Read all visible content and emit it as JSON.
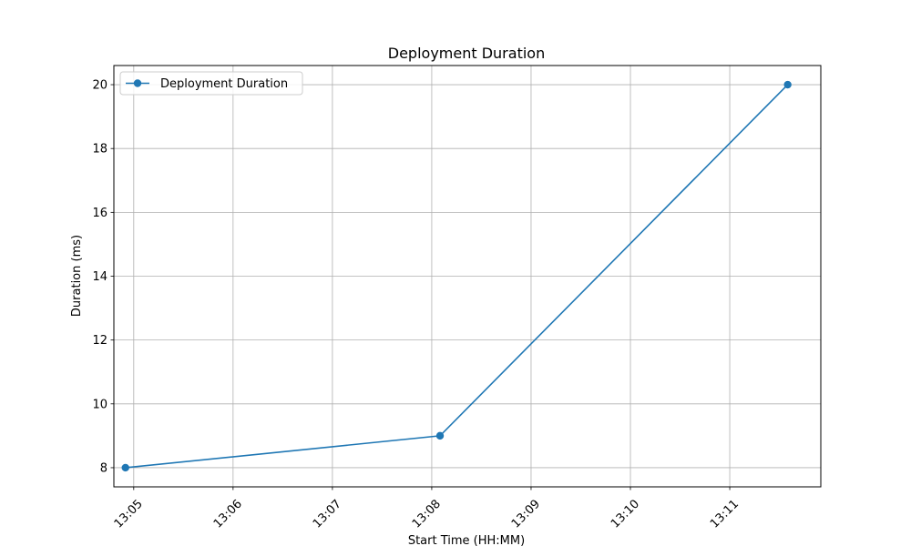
{
  "chart_data": {
    "type": "line",
    "title": "Deployment Duration",
    "xlabel": "Start Time (HH:MM)",
    "ylabel": "Duration (ms)",
    "x_ticks": [
      "13:05",
      "13:06",
      "13:07",
      "13:08",
      "13:09",
      "13:10",
      "13:11"
    ],
    "y_ticks": [
      8,
      10,
      12,
      14,
      16,
      18,
      20
    ],
    "xlim": [
      "13:04:48",
      "13:11:55"
    ],
    "ylim": [
      7.4,
      20.6
    ],
    "grid": true,
    "legend_position": "top-left",
    "series": [
      {
        "name": "Deployment Duration",
        "color": "#1f77b4",
        "marker": "circle",
        "x": [
          "13:04:55",
          "13:08:05",
          "13:11:35"
        ],
        "y": [
          8,
          9,
          20
        ]
      }
    ]
  }
}
